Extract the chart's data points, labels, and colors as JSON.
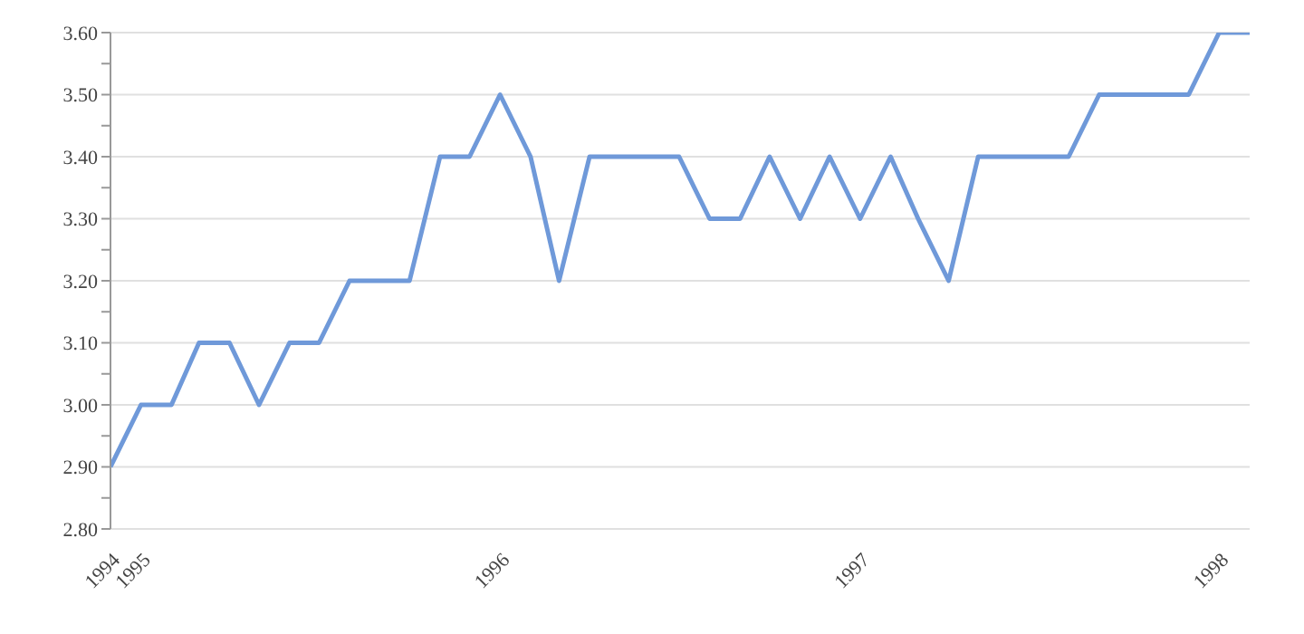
{
  "chart_data": {
    "type": "line",
    "x": [
      "1994-12",
      "1995-01",
      "1995-02",
      "1995-03",
      "1995-04",
      "1995-05",
      "1995-06",
      "1995-07",
      "1995-08",
      "1995-09",
      "1995-10",
      "1995-11",
      "1995-12",
      "1996-01",
      "1996-02",
      "1996-03",
      "1996-04",
      "1996-05",
      "1996-06",
      "1996-07",
      "1996-08",
      "1996-09",
      "1996-10",
      "1996-11",
      "1996-12",
      "1997-01",
      "1997-02",
      "1997-03",
      "1997-04",
      "1997-05",
      "1997-06",
      "1997-07",
      "1997-08",
      "1997-09",
      "1997-10",
      "1997-11",
      "1997-12",
      "1998-01",
      "1998-02"
    ],
    "series": [
      {
        "color": "#6f99d9",
        "values": [
          2.9,
          3.0,
          3.0,
          3.1,
          3.1,
          3.0,
          3.1,
          3.1,
          3.2,
          3.2,
          3.2,
          3.4,
          3.4,
          3.5,
          3.4,
          3.2,
          3.4,
          3.4,
          3.4,
          3.4,
          3.3,
          3.3,
          3.4,
          3.3,
          3.4,
          3.3,
          3.4,
          3.3,
          3.2,
          3.4,
          3.4,
          3.4,
          3.4,
          3.5,
          3.5,
          3.5,
          3.5,
          3.6,
          3.6
        ]
      }
    ],
    "xlim": [
      "1994-12",
      "1998-02"
    ],
    "xticks": [
      {
        "value": "1994-12",
        "label": "1994"
      },
      "1995",
      "1996",
      "1997",
      "1998"
    ],
    "ylim": [
      2.8,
      3.6
    ],
    "yticks": [
      {
        "value": 2.8,
        "label": "2.80"
      },
      {
        "value": 2.85,
        "label": null
      },
      {
        "value": 2.9,
        "label": "2.90"
      },
      {
        "value": 2.95,
        "label": null
      },
      {
        "value": 3.0,
        "label": "3.00"
      },
      {
        "value": 3.05,
        "label": null
      },
      {
        "value": 3.1,
        "label": "3.10"
      },
      {
        "value": 3.15,
        "label": null
      },
      {
        "value": 3.2,
        "label": "3.20"
      },
      {
        "value": 3.25,
        "label": null
      },
      {
        "value": 3.3,
        "label": "3.30"
      },
      {
        "value": 3.35,
        "label": null
      },
      {
        "value": 3.4,
        "label": "3.40"
      },
      {
        "value": 3.45,
        "label": null
      },
      {
        "value": 3.5,
        "label": "3.50"
      },
      {
        "value": 3.55,
        "label": null
      },
      {
        "value": 3.6,
        "label": "3.60"
      }
    ],
    "grid": "y",
    "marker": "none",
    "line_style": "solid",
    "legend": false
  }
}
